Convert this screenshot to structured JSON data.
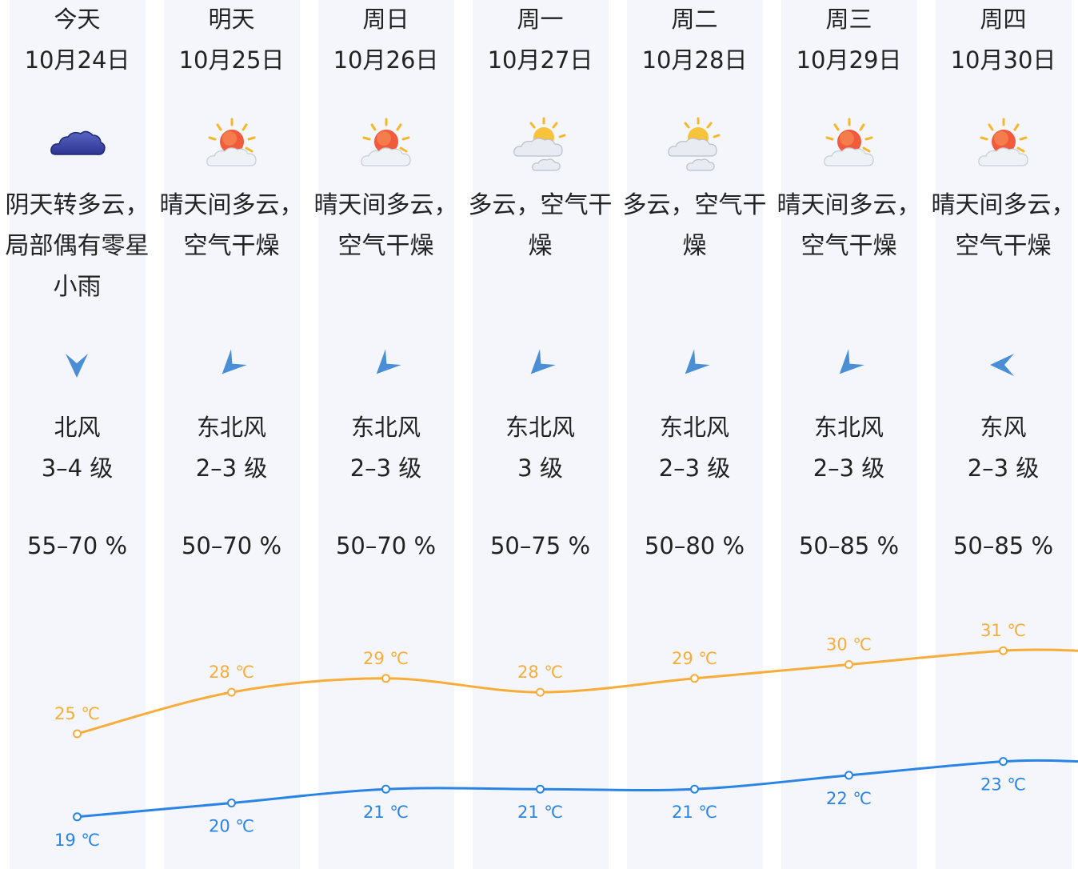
{
  "colors": {
    "column_bg": "#f4f6fb",
    "high_line": "#f8ad3a",
    "low_line": "#2a84e6",
    "arrow": "#4a8fd6"
  },
  "days": [
    {
      "name": "今天",
      "date": "10月24日",
      "icon": "overcast-cloud-icon",
      "desc": "阴天转多云，局部偶有零星小雨",
      "wind_arrow": "north-wind-arrow-icon",
      "wind_rot": 0,
      "wind_dir": "北风",
      "wind_level": "3–4 级",
      "humidity": "55–70 %"
    },
    {
      "name": "明天",
      "date": "10月25日",
      "icon": "sun-behind-cloud-icon",
      "desc": "晴天间多云，空气干燥",
      "wind_arrow": "northeast-wind-arrow-icon",
      "wind_rot": 45,
      "wind_dir": "东北风",
      "wind_level": "2–3 级",
      "humidity": "50–70 %"
    },
    {
      "name": "周日",
      "date": "10月26日",
      "icon": "sun-behind-cloud-icon",
      "desc": "晴天间多云，空气干燥",
      "wind_arrow": "northeast-wind-arrow-icon",
      "wind_rot": 45,
      "wind_dir": "东北风",
      "wind_level": "2–3 级",
      "humidity": "50–70 %"
    },
    {
      "name": "周一",
      "date": "10月27日",
      "icon": "partly-cloudy-icon",
      "desc": "多云，空气干燥",
      "wind_arrow": "northeast-wind-arrow-icon",
      "wind_rot": 45,
      "wind_dir": "东北风",
      "wind_level": "3 级",
      "humidity": "50–75 %"
    },
    {
      "name": "周二",
      "date": "10月28日",
      "icon": "partly-cloudy-icon",
      "desc": "多云，空气干燥",
      "wind_arrow": "northeast-wind-arrow-icon",
      "wind_rot": 45,
      "wind_dir": "东北风",
      "wind_level": "2–3 级",
      "humidity": "50–80 %"
    },
    {
      "name": "周三",
      "date": "10月29日",
      "icon": "sun-behind-cloud-icon",
      "desc": "晴天间多云，空气干燥",
      "wind_arrow": "northeast-wind-arrow-icon",
      "wind_rot": 45,
      "wind_dir": "东北风",
      "wind_level": "2–3 级",
      "humidity": "50–85 %"
    },
    {
      "name": "周四",
      "date": "10月30日",
      "icon": "sun-behind-cloud-icon",
      "desc": "晴天间多云，空气干燥",
      "wind_arrow": "east-wind-arrow-icon",
      "wind_rot": 90,
      "wind_dir": "东风",
      "wind_level": "2–3 级",
      "humidity": "50–85 %"
    }
  ],
  "chart_data": {
    "type": "line",
    "categories": [
      "10月24日",
      "10月25日",
      "10月26日",
      "10月27日",
      "10月28日",
      "10月29日",
      "10月30日"
    ],
    "series": [
      {
        "values": [
          25,
          28,
          29,
          28,
          29,
          30,
          31
        ],
        "color": "#f8ad3a"
      },
      {
        "values": [
          19,
          20,
          21,
          21,
          21,
          22,
          23
        ],
        "color": "#2a84e6"
      }
    ],
    "unit": "℃",
    "grid": false,
    "legend": "none"
  }
}
